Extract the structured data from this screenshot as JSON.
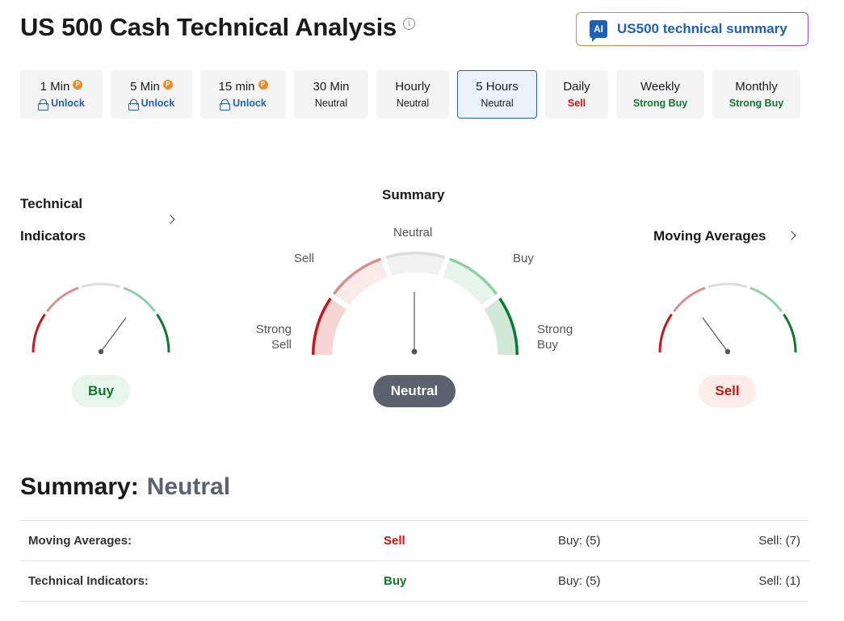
{
  "header": {
    "title": "US 500 Cash Technical Analysis",
    "info_icon": "info-icon",
    "ai_button": {
      "badge": "AI",
      "label": "US500 technical summary"
    }
  },
  "timeframes": [
    {
      "label": "1 Min",
      "status": "Unlock",
      "locked": true
    },
    {
      "label": "5 Min",
      "status": "Unlock",
      "locked": true
    },
    {
      "label": "15 min",
      "status": "Unlock",
      "locked": true
    },
    {
      "label": "30 Min",
      "status": "Neutral",
      "locked": false
    },
    {
      "label": "Hourly",
      "status": "Neutral",
      "locked": false
    },
    {
      "label": "5 Hours",
      "status": "Neutral",
      "locked": false,
      "active": true
    },
    {
      "label": "Daily",
      "status": "Sell",
      "locked": false
    },
    {
      "label": "Weekly",
      "status": "Strong Buy",
      "locked": false
    },
    {
      "label": "Monthly",
      "status": "Strong Buy",
      "locked": false
    }
  ],
  "pro_badge": "P",
  "gauges": {
    "technical_indicators": {
      "title_line1": "Technical",
      "title_line2": "Indicators",
      "verdict": "Buy"
    },
    "summary": {
      "title": "Summary",
      "labels": {
        "neutral": "Neutral",
        "sell": "Sell",
        "buy": "Buy",
        "strong_sell_1": "Strong",
        "strong_sell_2": "Sell",
        "strong_buy_1": "Strong",
        "strong_buy_2": "Buy"
      },
      "verdict": "Neutral"
    },
    "moving_averages": {
      "title": "Moving Averages",
      "verdict": "Sell"
    }
  },
  "summary": {
    "label": "Summary:",
    "verdict": "Neutral",
    "rows": [
      {
        "name": "Moving Averages:",
        "action": "Sell",
        "buy": "Buy: (5)",
        "sell": "Sell: (7)"
      },
      {
        "name": "Technical Indicators:",
        "action": "Buy",
        "buy": "Buy: (5)",
        "sell": "Sell: (1)"
      }
    ]
  },
  "colors": {
    "strong_sell": "#c8161d",
    "sell": "#d98d8c",
    "neutral": "#dcdcdc",
    "buy": "#8fcfa6",
    "strong_buy": "#0c7a2e",
    "accent": "#1f5fb6"
  }
}
